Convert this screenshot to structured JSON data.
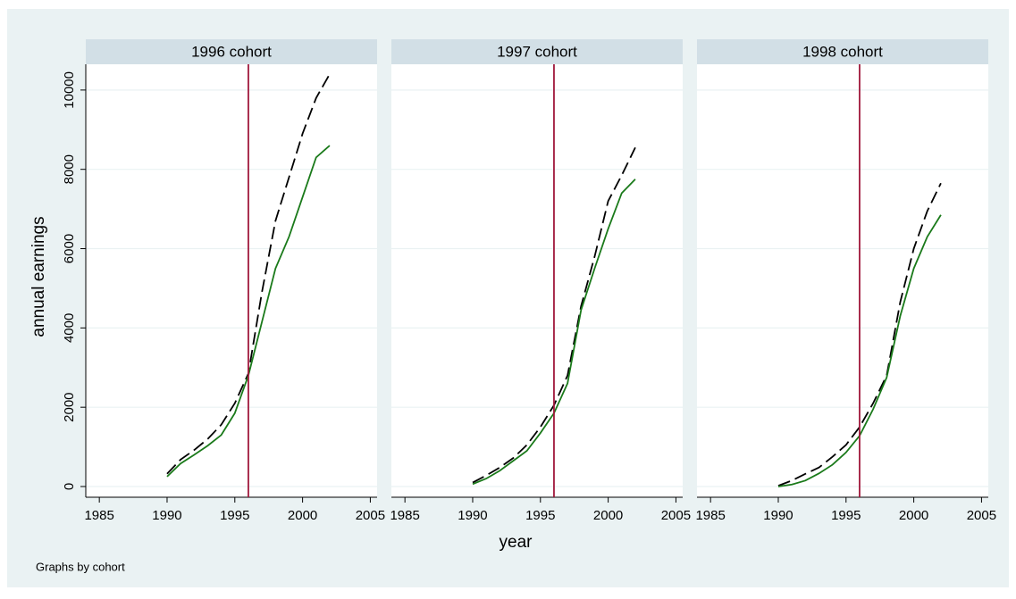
{
  "chart_data": [
    {
      "type": "line",
      "title": "1996 cohort",
      "x": [
        1990,
        1991,
        1992,
        1993,
        1994,
        1995,
        1996,
        1997,
        1998,
        1999,
        2000,
        2001,
        2002
      ],
      "series": [
        {
          "color": "#000000",
          "style": "dashed",
          "values": [
            320,
            680,
            920,
            1200,
            1560,
            2100,
            2850,
            4900,
            6700,
            7800,
            8900,
            9800,
            10400
          ]
        },
        {
          "color": "#1a7a1a",
          "style": "solid",
          "values": [
            250,
            580,
            800,
            1030,
            1300,
            1850,
            2800,
            4150,
            5500,
            6300,
            7300,
            8300,
            8600
          ]
        }
      ],
      "vline": 1996,
      "vline_color": "#a0183c",
      "xlim": [
        1984,
        2005.5
      ],
      "xticks": [
        1985,
        1990,
        1995,
        2000,
        2005
      ],
      "ylim": [
        -270,
        10650
      ],
      "yticks": [
        0,
        2000,
        4000,
        6000,
        8000,
        10000
      ],
      "grid": true
    },
    {
      "type": "line",
      "title": "1997 cohort",
      "x": [
        1990,
        1991,
        1992,
        1993,
        1994,
        1995,
        1996,
        1997,
        1998,
        1999,
        2000,
        2001,
        2002
      ],
      "series": [
        {
          "color": "#000000",
          "style": "dashed",
          "values": [
            100,
            280,
            480,
            720,
            1050,
            1500,
            2050,
            2800,
            4550,
            5800,
            7200,
            7850,
            8550
          ]
        },
        {
          "color": "#1a7a1a",
          "style": "solid",
          "values": [
            60,
            200,
            400,
            650,
            900,
            1350,
            1850,
            2600,
            4450,
            5500,
            6500,
            7400,
            7750
          ]
        }
      ],
      "vline": 1996,
      "vline_color": "#a0183c",
      "xlim": [
        1984,
        2005.5
      ],
      "xticks": [
        1985,
        1990,
        1995,
        2000,
        2005
      ],
      "ylim": [
        -270,
        10650
      ],
      "yticks": [
        0,
        2000,
        4000,
        6000,
        8000,
        10000
      ],
      "grid": true
    },
    {
      "type": "line",
      "title": "1998 cohort",
      "x": [
        1990,
        1991,
        1992,
        1993,
        1994,
        1995,
        1996,
        1997,
        1998,
        1999,
        2000,
        2001,
        2002
      ],
      "series": [
        {
          "color": "#000000",
          "style": "dashed",
          "values": [
            20,
            150,
            320,
            480,
            750,
            1050,
            1500,
            2100,
            2800,
            4650,
            6000,
            6950,
            7650
          ]
        },
        {
          "color": "#1a7a1a",
          "style": "solid",
          "values": [
            0,
            50,
            150,
            330,
            550,
            860,
            1280,
            1950,
            2750,
            4300,
            5500,
            6300,
            6850
          ]
        }
      ],
      "vline": 1996,
      "vline_color": "#a0183c",
      "xlim": [
        1984,
        2005.5
      ],
      "xticks": [
        1985,
        1990,
        1995,
        2000,
        2005
      ],
      "ylim": [
        -270,
        10650
      ],
      "yticks": [
        0,
        2000,
        4000,
        6000,
        8000,
        10000
      ],
      "grid": true
    }
  ],
  "xlabel": "year",
  "ylabel": "annual earnings",
  "note": "Graphs by cohort"
}
